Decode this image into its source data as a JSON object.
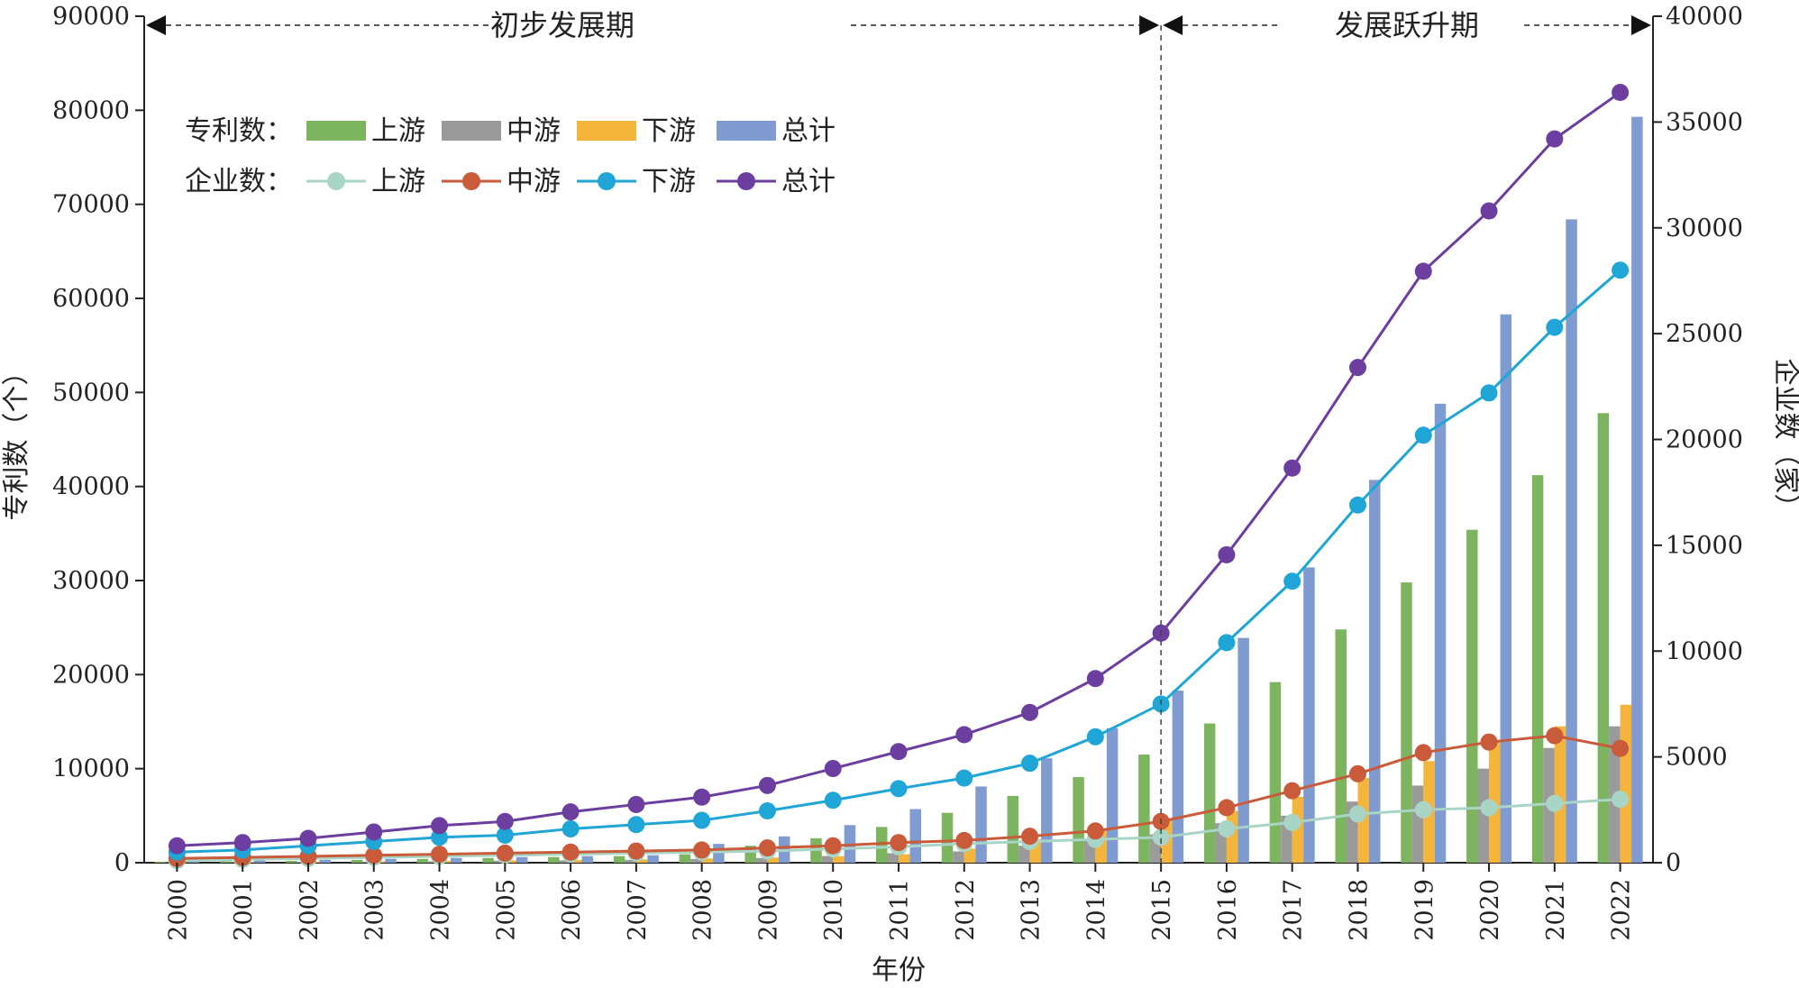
{
  "chart_data": {
    "type": "bar+line",
    "title": "",
    "xlabel": "年份",
    "ylabel_left": "专利数（个）",
    "ylabel_right": "企业数（家）",
    "ylim_left": [
      0,
      90000
    ],
    "ylim_right": [
      0,
      40000
    ],
    "yticks_left": [
      0,
      10000,
      20000,
      30000,
      40000,
      50000,
      60000,
      70000,
      80000,
      90000
    ],
    "yticks_right": [
      0,
      5000,
      10000,
      15000,
      20000,
      25000,
      30000,
      35000,
      40000
    ],
    "categories": [
      "2000",
      "2001",
      "2002",
      "2003",
      "2004",
      "2005",
      "2006",
      "2007",
      "2008",
      "2009",
      "2010",
      "2011",
      "2012",
      "2013",
      "2014",
      "2015",
      "2016",
      "2017",
      "2018",
      "2019",
      "2020",
      "2021",
      "2022"
    ],
    "periods": [
      {
        "label": "初步发展期",
        "from": "2000",
        "to": "2015"
      },
      {
        "label": "发展跃升期",
        "from": "2015",
        "to": "2022"
      }
    ],
    "bar_group_label": "专利数：",
    "line_group_label": "企业数：",
    "bar_series": [
      {
        "name": "上游",
        "color": "#7cb45f",
        "values": [
          100,
          150,
          200,
          300,
          400,
          500,
          600,
          700,
          900,
          1800,
          2600,
          3800,
          5300,
          7100,
          9100,
          11500,
          14800,
          19200,
          24800,
          29800,
          35400,
          41200,
          47800
        ]
      },
      {
        "name": "中游",
        "color": "#9a9a9a",
        "values": [
          50,
          80,
          100,
          120,
          150,
          200,
          250,
          300,
          400,
          500,
          700,
          1000,
          1200,
          1800,
          2500,
          3000,
          4200,
          5000,
          6500,
          8200,
          10000,
          12200,
          14500
        ]
      },
      {
        "name": "下游",
        "color": "#f5b53a",
        "values": [
          60,
          90,
          120,
          150,
          200,
          250,
          300,
          350,
          450,
          550,
          700,
          900,
          1500,
          2500,
          3500,
          4500,
          5500,
          7000,
          9000,
          10800,
          12800,
          14500,
          16800
        ]
      },
      {
        "name": "总计",
        "color": "#7f9bcf",
        "values": [
          200,
          250,
          300,
          400,
          500,
          600,
          700,
          800,
          2000,
          2800,
          4000,
          5700,
          8100,
          11100,
          14300,
          18300,
          23900,
          31400,
          40700,
          48800,
          58300,
          68400,
          79300
        ]
      }
    ],
    "line_series": [
      {
        "name": "上游",
        "color": "#a8d5c6",
        "values": [
          100,
          150,
          200,
          250,
          300,
          350,
          400,
          450,
          500,
          550,
          650,
          750,
          900,
          1000,
          1100,
          1200,
          1600,
          1900,
          2300,
          2500,
          2600,
          2800,
          3000
        ]
      },
      {
        "name": "中游",
        "color": "#c95a3a",
        "values": [
          200,
          250,
          300,
          350,
          400,
          450,
          500,
          550,
          600,
          700,
          800,
          950,
          1050,
          1250,
          1500,
          1950,
          2600,
          3400,
          4200,
          5200,
          5700,
          6000,
          5400
        ]
      },
      {
        "name": "下游",
        "color": "#1fa6d6",
        "values": [
          500,
          600,
          800,
          1000,
          1200,
          1300,
          1600,
          1800,
          2000,
          2450,
          2950,
          3500,
          4000,
          4700,
          5950,
          7500,
          10400,
          13300,
          16900,
          20200,
          22200,
          25300,
          28000
        ]
      },
      {
        "name": "总计",
        "color": "#6b3ea0",
        "values": [
          800,
          950,
          1150,
          1450,
          1750,
          1950,
          2400,
          2750,
          3100,
          3650,
          4450,
          5250,
          6050,
          7100,
          8700,
          10850,
          14550,
          18650,
          23400,
          27950,
          30800,
          34200,
          36400
        ]
      }
    ]
  }
}
